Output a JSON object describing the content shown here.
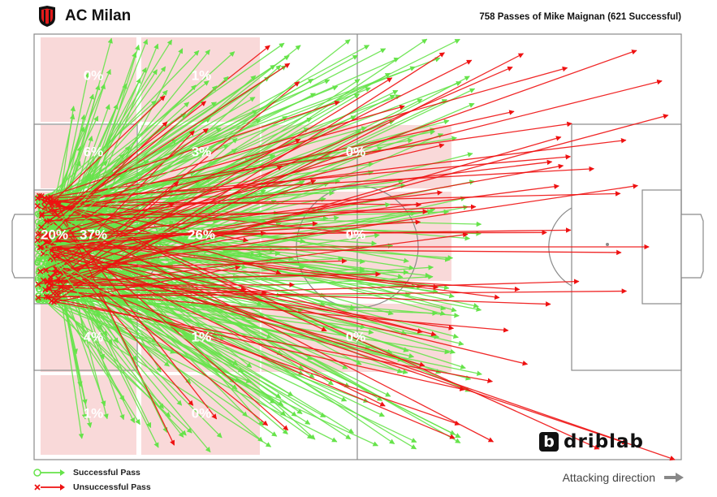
{
  "header": {
    "team_name": "AC Milan",
    "subtitle": "758 Passes of Mike Maignan (621 Successful)"
  },
  "legend": {
    "successful_label": "Successful Pass",
    "unsuccessful_label": "Unsuccessful Pass"
  },
  "footer": {
    "attacking_direction": "Attacking direction",
    "brand": "driblab",
    "brand_mark": "b"
  },
  "colors": {
    "successful": "#66e34a",
    "unsuccessful": "#ee1111",
    "zone_tint": "#f9d9d9",
    "pitch_lines": "#8a8a8a"
  },
  "chart_data": {
    "type": "scatter",
    "attacking_direction": "left-to-right",
    "pass_totals": {
      "total": 758,
      "successful": 621
    },
    "zones": [
      {
        "label": "0%",
        "share": 0,
        "col": 0,
        "row": 0
      },
      {
        "label": "1%",
        "share": 1,
        "col": 1,
        "row": 0
      },
      {
        "label": "6%",
        "share": 6,
        "col": 0,
        "row": 1
      },
      {
        "label": "3%",
        "share": 3,
        "col": 1,
        "row": 1
      },
      {
        "label": "0%",
        "share": 0,
        "col": 2,
        "row": 1
      },
      {
        "label": "20%",
        "share": 20,
        "col": "box",
        "row": 2
      },
      {
        "label": "37%",
        "share": 37,
        "col": 0,
        "row": 2
      },
      {
        "label": "26%",
        "share": 26,
        "col": 1,
        "row": 2
      },
      {
        "label": "0%",
        "share": 0,
        "col": 2,
        "row": 2
      },
      {
        "label": "4%",
        "share": 4,
        "col": 0,
        "row": 3
      },
      {
        "label": "1%",
        "share": 1,
        "col": 1,
        "row": 3
      },
      {
        "label": "0%",
        "share": 0,
        "col": 2,
        "row": 3
      },
      {
        "label": "1%",
        "share": 1,
        "col": 0,
        "row": 4
      },
      {
        "label": "0%",
        "share": 0,
        "col": 1,
        "row": 4
      }
    ],
    "pass_samples": [
      {
        "x1": 2,
        "y1": 50,
        "x2": 30,
        "y2": 10,
        "ok": true
      },
      {
        "x1": 3,
        "y1": 48,
        "x2": 35,
        "y2": 20,
        "ok": true
      },
      {
        "x1": 2,
        "y1": 52,
        "x2": 40,
        "y2": 85,
        "ok": true
      },
      {
        "x1": 4,
        "y1": 55,
        "x2": 45,
        "y2": 90,
        "ok": true
      },
      {
        "x1": 2,
        "y1": 45,
        "x2": 50,
        "y2": 5,
        "ok": true
      },
      {
        "x1": 3,
        "y1": 50,
        "x2": 60,
        "y2": 70,
        "ok": false
      },
      {
        "x1": 2,
        "y1": 50,
        "x2": 95,
        "y2": 50,
        "ok": false
      },
      {
        "x1": 2,
        "y1": 49,
        "x2": 99,
        "y2": 100,
        "ok": false
      },
      {
        "x1": 2,
        "y1": 47,
        "x2": 97,
        "y2": 11,
        "ok": false
      },
      {
        "x1": 3,
        "y1": 53,
        "x2": 75,
        "y2": 60,
        "ok": false
      },
      {
        "x1": 2,
        "y1": 44,
        "x2": 80,
        "y2": 30,
        "ok": false
      },
      {
        "x1": 4,
        "y1": 56,
        "x2": 65,
        "y2": 95,
        "ok": false
      },
      {
        "x1": 2,
        "y1": 51,
        "x2": 20,
        "y2": 88,
        "ok": true
      },
      {
        "x1": 3,
        "y1": 46,
        "x2": 25,
        "y2": 12,
        "ok": true
      },
      {
        "x1": 2,
        "y1": 50,
        "x2": 55,
        "y2": 40,
        "ok": true
      }
    ]
  }
}
